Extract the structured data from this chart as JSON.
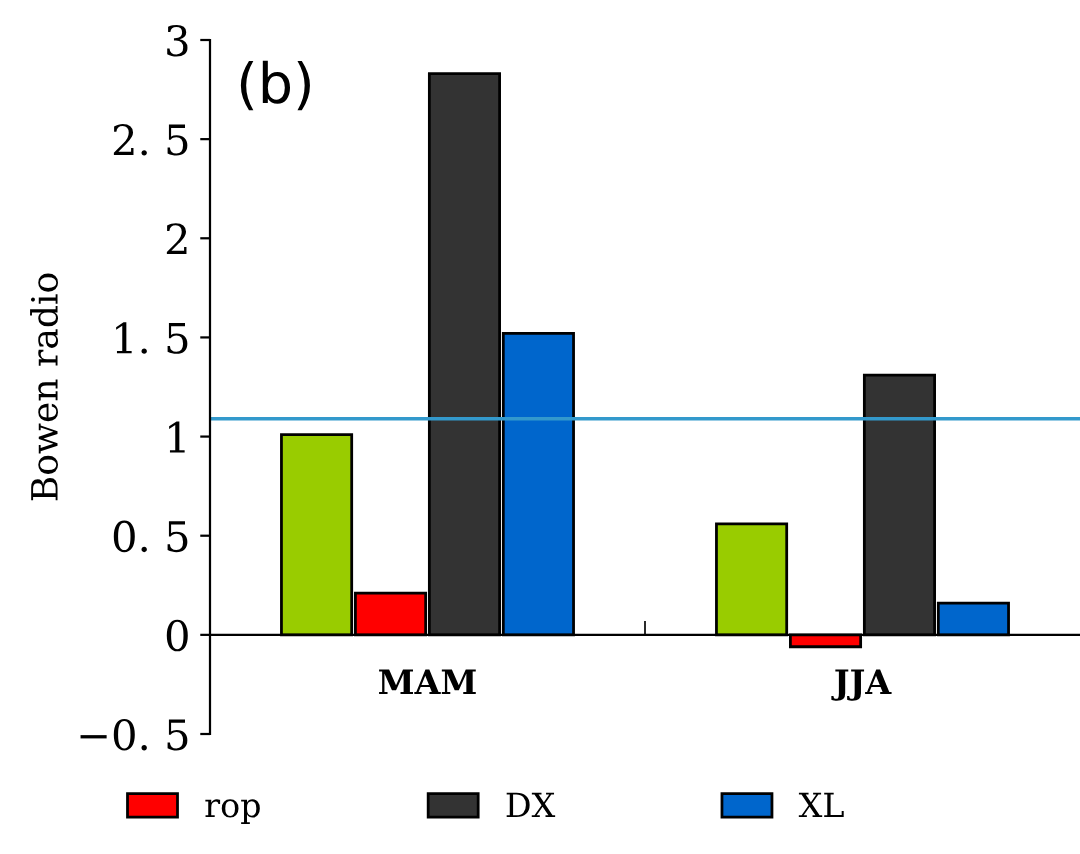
{
  "chart_data": {
    "type": "bar",
    "ylabel": "Bowen radio",
    "annotations": [
      "(b)"
    ],
    "categories": [
      "MAM",
      "JJA"
    ],
    "series": [
      {
        "color": "#99cc00",
        "values": [
          1.01,
          0.56
        ]
      },
      {
        "name": "rop",
        "color": "#ff0000",
        "values": [
          0.21,
          -0.06
        ]
      },
      {
        "name": "DX",
        "color": "#333333",
        "values": [
          2.83,
          1.31
        ]
      },
      {
        "name": "XL",
        "color": "#0066cc",
        "values": [
          1.52,
          0.16
        ]
      }
    ],
    "ylim": [
      -0.5,
      3
    ],
    "yticks": [
      {
        "value": -0.5,
        "label": "−0. 5"
      },
      0,
      {
        "value": 0.5,
        "label": "0. 5"
      },
      1,
      {
        "value": 1.5,
        "label": "1. 5"
      },
      2,
      {
        "value": 2.5,
        "label": "2. 5"
      },
      3
    ],
    "ref_lines": [
      {
        "axis": "y",
        "value": 1.09,
        "color": "#3399cc"
      }
    ],
    "legend": "bottom",
    "grid": false
  }
}
